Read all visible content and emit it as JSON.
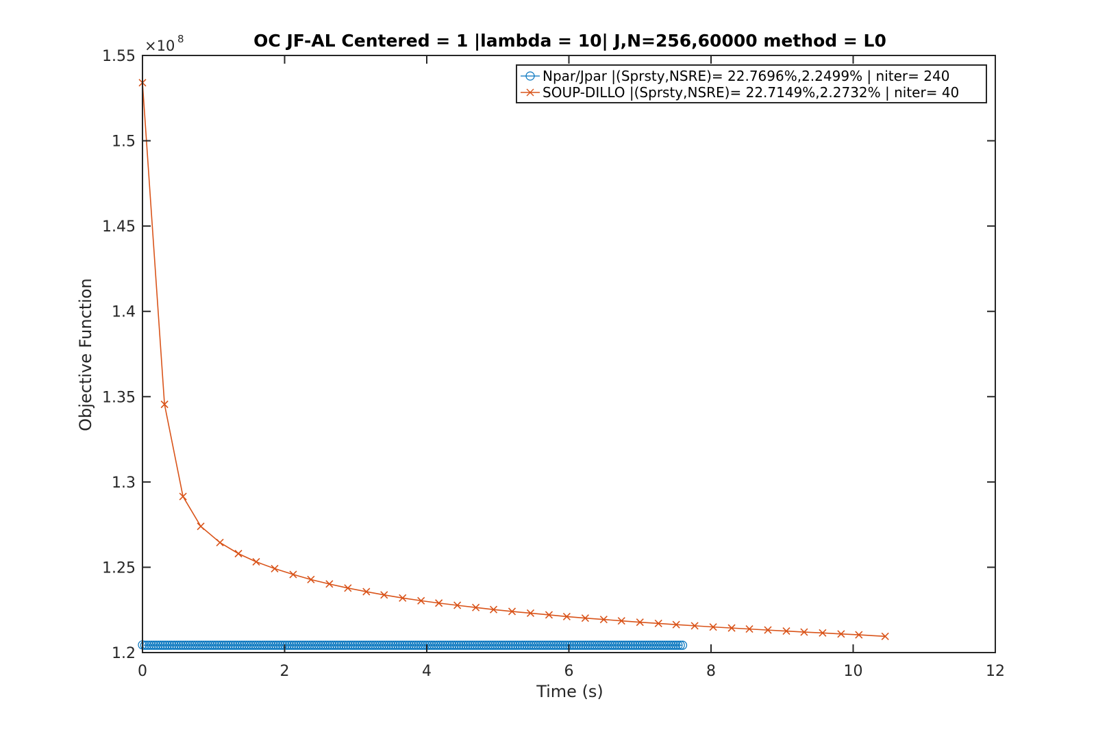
{
  "chart_data": {
    "type": "line",
    "title": "OC JF-AL Centered = 1 |lambda = 10| J,N=256,60000 method = L0",
    "xlabel": "Time (s)",
    "ylabel": "Objective Function",
    "xlim": [
      0,
      12
    ],
    "ylim": [
      1.2,
      1.55
    ],
    "x_ticks": [
      0,
      2,
      4,
      6,
      8,
      10,
      12
    ],
    "x_tick_labels": [
      "0",
      "2",
      "4",
      "6",
      "8",
      "10",
      "12"
    ],
    "y_ticks": [
      1.2,
      1.25,
      1.3,
      1.35,
      1.4,
      1.45,
      1.5,
      1.55
    ],
    "y_tick_labels": [
      "1.2",
      "1.25",
      "1.3",
      "1.35",
      "1.4",
      "1.45",
      "1.5",
      "1.55"
    ],
    "y_exponent_label": "×10",
    "y_exponent_power": "8",
    "y_scale_factor": 100000000,
    "grid": false,
    "legend_position": "top-right",
    "series": [
      {
        "name": "Npar/Jpar |(Sprsty,NSRE)= 22.7696%,2.2499% | niter= 240",
        "color": "#0072BD",
        "marker": "circle",
        "x_start": 0,
        "x_end": 7.6,
        "points_count": 240,
        "y_first": 1.2045,
        "y_rest": 1.2043
      },
      {
        "name": "SOUP-DILLO |(Sprsty,NSRE)= 22.7149%,2.2732% | niter= 40",
        "color": "#D95319",
        "marker": "x",
        "x": [
          0,
          0.31,
          0.57,
          0.82,
          1.09,
          1.35,
          1.6,
          1.86,
          2.12,
          2.37,
          2.63,
          2.89,
          3.15,
          3.4,
          3.66,
          3.92,
          4.17,
          4.43,
          4.69,
          4.94,
          5.2,
          5.46,
          5.72,
          5.97,
          6.23,
          6.49,
          6.74,
          7.0,
          7.26,
          7.51,
          7.77,
          8.03,
          8.29,
          8.54,
          8.8,
          9.06,
          9.31,
          9.57,
          9.83,
          10.08,
          10.45
        ],
        "y": [
          1.534,
          1.3455,
          1.2915,
          1.274,
          1.2645,
          1.258,
          1.2532,
          1.2492,
          1.2458,
          1.2428,
          1.2402,
          1.2378,
          1.2357,
          1.2338,
          1.232,
          1.2304,
          1.229,
          1.2277,
          1.2264,
          1.2252,
          1.2241,
          1.2231,
          1.2221,
          1.2211,
          1.2202,
          1.2194,
          1.2186,
          1.2178,
          1.2171,
          1.2164,
          1.2157,
          1.215,
          1.2144,
          1.2138,
          1.2132,
          1.2126,
          1.212,
          1.2115,
          1.2109,
          1.2104,
          1.2095
        ]
      }
    ]
  }
}
